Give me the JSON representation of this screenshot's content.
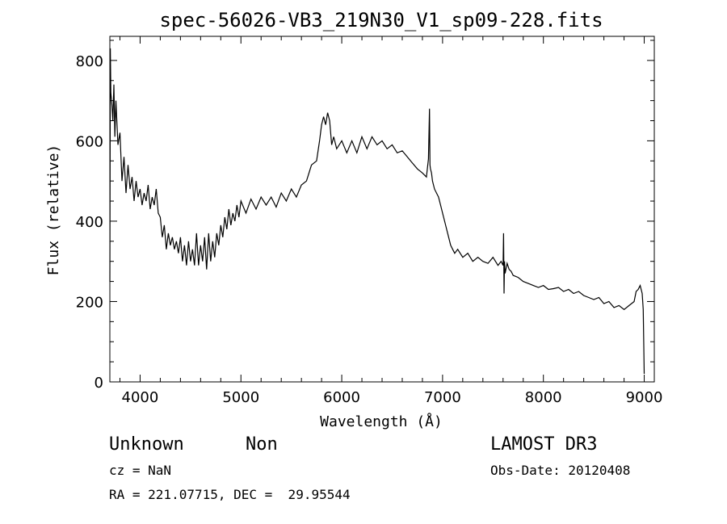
{
  "chart_data": {
    "type": "line",
    "title": "spec-56026-VB3_219N30_V1_sp09-228.fits",
    "xlabel": "Wavelength (Å)",
    "ylabel": "Flux (relative)",
    "xlim": [
      3700,
      9100
    ],
    "ylim": [
      0,
      860
    ],
    "x_ticks": [
      4000,
      5000,
      6000,
      7000,
      8000,
      9000
    ],
    "y_ticks": [
      0,
      200,
      400,
      600,
      800
    ],
    "grid": false,
    "series": [
      {
        "x": [
          3700,
          3705,
          3710,
          3720,
          3730,
          3740,
          3750,
          3760,
          3780,
          3800,
          3820,
          3840,
          3860,
          3880,
          3900,
          3920,
          3940,
          3960,
          3980,
          4000,
          4020,
          4040,
          4060,
          4080,
          4100,
          4120,
          4140,
          4160,
          4180,
          4200,
          4220,
          4240,
          4260,
          4280,
          4300,
          4320,
          4340,
          4360,
          4380,
          4400,
          4420,
          4440,
          4460,
          4480,
          4500,
          4520,
          4540,
          4560,
          4580,
          4600,
          4620,
          4640,
          4660,
          4680,
          4700,
          4720,
          4740,
          4760,
          4780,
          4800,
          4820,
          4840,
          4860,
          4880,
          4900,
          4920,
          4940,
          4960,
          4980,
          5000,
          5050,
          5100,
          5150,
          5200,
          5250,
          5300,
          5350,
          5400,
          5450,
          5500,
          5550,
          5600,
          5650,
          5700,
          5750,
          5780,
          5800,
          5820,
          5840,
          5860,
          5880,
          5900,
          5920,
          5950,
          6000,
          6050,
          6100,
          6150,
          6200,
          6250,
          6300,
          6350,
          6400,
          6450,
          6500,
          6550,
          6600,
          6650,
          6700,
          6750,
          6800,
          6840,
          6860,
          6870,
          6875,
          6880,
          6890,
          6900,
          6920,
          6940,
          6960,
          6980,
          7000,
          7020,
          7040,
          7060,
          7080,
          7100,
          7120,
          7150,
          7200,
          7250,
          7300,
          7350,
          7400,
          7450,
          7500,
          7550,
          7580,
          7600,
          7605,
          7610,
          7615,
          7620,
          7640,
          7660,
          7680,
          7700,
          7750,
          7800,
          7850,
          7900,
          7950,
          8000,
          8050,
          8100,
          8150,
          8200,
          8250,
          8300,
          8350,
          8400,
          8450,
          8500,
          8550,
          8600,
          8650,
          8700,
          8750,
          8800,
          8850,
          8900,
          8920,
          8940,
          8960,
          8980,
          8990,
          9000
        ],
        "y": [
          250,
          830,
          720,
          690,
          650,
          740,
          610,
          700,
          590,
          620,
          500,
          560,
          470,
          540,
          480,
          510,
          450,
          500,
          460,
          480,
          440,
          470,
          450,
          490,
          430,
          460,
          440,
          480,
          420,
          410,
          360,
          390,
          330,
          370,
          340,
          360,
          330,
          350,
          320,
          360,
          300,
          340,
          290,
          350,
          300,
          330,
          290,
          370,
          290,
          340,
          300,
          360,
          280,
          370,
          300,
          350,
          310,
          370,
          340,
          390,
          360,
          410,
          380,
          430,
          390,
          420,
          400,
          440,
          410,
          450,
          420,
          455,
          430,
          460,
          440,
          460,
          435,
          470,
          450,
          480,
          460,
          490,
          500,
          540,
          550,
          600,
          640,
          660,
          640,
          670,
          650,
          590,
          610,
          580,
          600,
          570,
          600,
          570,
          610,
          580,
          610,
          590,
          600,
          580,
          590,
          570,
          575,
          560,
          545,
          530,
          520,
          510,
          555,
          680,
          540,
          530,
          520,
          500,
          480,
          470,
          460,
          440,
          420,
          400,
          380,
          360,
          340,
          330,
          320,
          330,
          310,
          320,
          300,
          310,
          300,
          295,
          310,
          290,
          300,
          290,
          370,
          220,
          300,
          270,
          295,
          280,
          275,
          265,
          260,
          250,
          245,
          240,
          235,
          240,
          230,
          232,
          235,
          225,
          230,
          220,
          225,
          215,
          210,
          205,
          210,
          195,
          200,
          185,
          190,
          180,
          190,
          200,
          225,
          230,
          240,
          220,
          180,
          20
        ]
      }
    ]
  },
  "info": {
    "object_class": "Unknown",
    "subclass": "Non",
    "cz": "cz = NaN",
    "coords": "RA = 221.07715, DEC =  29.95544",
    "survey": "LAMOST DR3",
    "obs_date": "Obs-Date: 20120408"
  }
}
